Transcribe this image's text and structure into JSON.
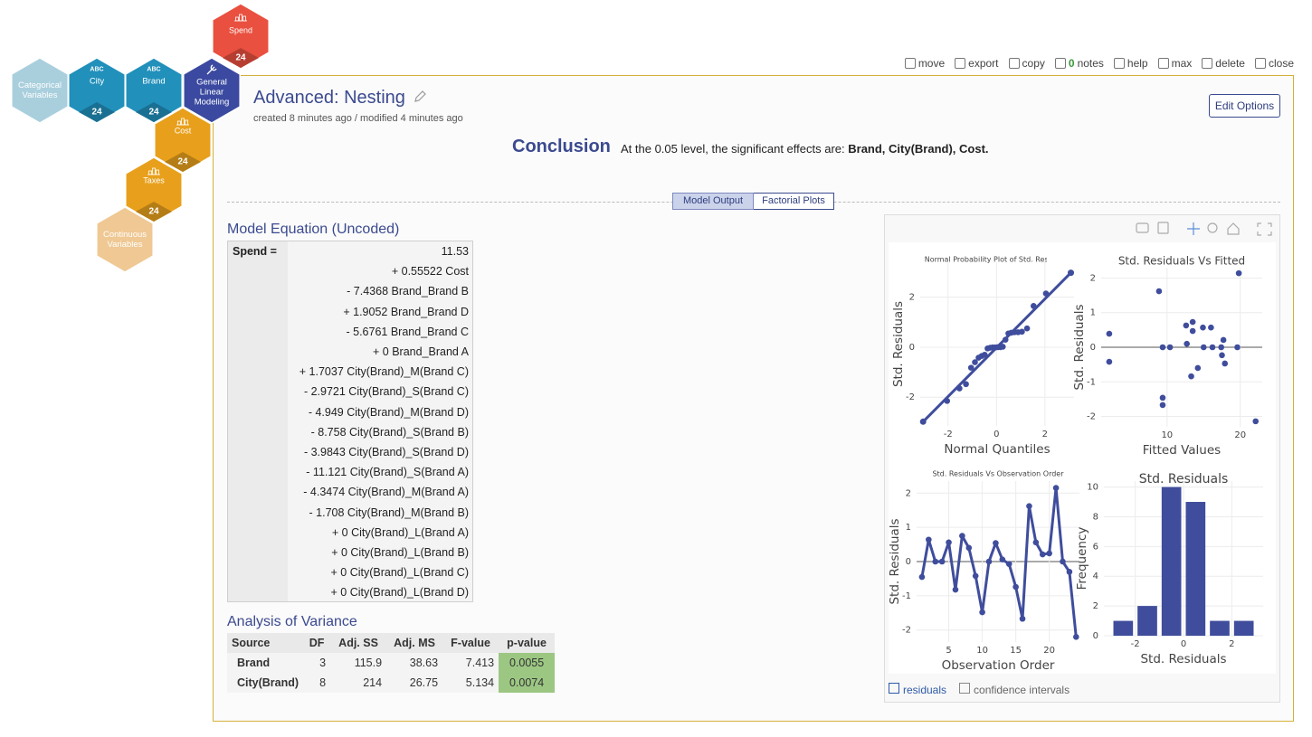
{
  "nodes": [
    {
      "label": "Spend",
      "count": "24",
      "color": "#e9503f"
    },
    {
      "label": "Categorical Variables",
      "color": "#a9cfdd"
    },
    {
      "label": "City",
      "badge": "ABC",
      "count": "24",
      "color": "#2190bb"
    },
    {
      "label": "Brand",
      "badge": "ABC",
      "count": "24",
      "color": "#2190bb"
    },
    {
      "label": "General Linear Modeling",
      "color": "#3b4aa0"
    },
    {
      "label": "Cost",
      "count": "24",
      "color": "#e8a01c"
    },
    {
      "label": "Taxes",
      "count": "24",
      "color": "#e8a01c"
    },
    {
      "label": "Continuous Variables",
      "color": "#efc893"
    }
  ],
  "toolbar": [
    {
      "label": "move"
    },
    {
      "label": "export"
    },
    {
      "label": "copy"
    },
    {
      "count": "0",
      "label": "notes"
    },
    {
      "label": "help"
    },
    {
      "label": "max"
    },
    {
      "label": "delete"
    },
    {
      "label": "close"
    }
  ],
  "header": {
    "title": "Advanced: Nesting",
    "meta": "created 8 minutes ago / modified 4 minutes ago",
    "button": "Edit Options"
  },
  "conclusion": {
    "heading": "Conclusion",
    "text": "At the 0.05 level, the significant effects are: ",
    "effects": "Brand, City(Brand), Cost."
  },
  "tabs": [
    "Model Output",
    "Factorial Plots"
  ],
  "equation": {
    "title": "Model Equation (Uncoded)",
    "response": "Spend =",
    "terms": [
      "11.53",
      "+ 0.55522 Cost",
      "- 7.4368 Brand_Brand B",
      "+ 1.9052 Brand_Brand D",
      "- 5.6761 Brand_Brand C",
      "+ 0 Brand_Brand A",
      "+ 1.7037 City(Brand)_M(Brand C)",
      "- 2.9721 City(Brand)_S(Brand C)",
      "- 4.949 City(Brand)_M(Brand D)",
      "- 8.758 City(Brand)_S(Brand B)",
      "- 3.9843 City(Brand)_S(Brand D)",
      "- 11.121 City(Brand)_S(Brand A)",
      "- 4.3474 City(Brand)_M(Brand A)",
      "- 1.708 City(Brand)_M(Brand B)",
      "+ 0 City(Brand)_L(Brand A)",
      "+ 0 City(Brand)_L(Brand B)",
      "+ 0 City(Brand)_L(Brand C)",
      "+ 0 City(Brand)_L(Brand D)"
    ]
  },
  "anova": {
    "title": "Analysis of Variance",
    "columns": [
      "Source",
      "DF",
      "Adj. SS",
      "Adj. MS",
      "F-value",
      "p-value"
    ],
    "rows": [
      [
        "Brand",
        "3",
        "115.9",
        "38.63",
        "7.413",
        "0.0055"
      ],
      [
        "City(Brand)",
        "8",
        "214",
        "26.75",
        "5.134",
        "0.0074"
      ]
    ]
  },
  "plots": [
    {
      "type": "scatter",
      "title": "Normal Probability Plot of Std. Residuals",
      "xlabel": "Normal Quantiles",
      "ylabel": "Std. Residuals",
      "xlim": [
        -3.15,
        3.2
      ],
      "ylim": [
        -3.15,
        3.4
      ],
      "xticks": [
        -2,
        0,
        2
      ],
      "yticks": [
        -2,
        0,
        2
      ],
      "grid": true,
      "color": "#3f4d9c",
      "x": [
        -2.04,
        -1.53,
        -1.26,
        -1.05,
        -0.89,
        -0.74,
        -0.61,
        -0.49,
        -0.37,
        -0.26,
        -0.16,
        -0.05,
        0.05,
        0.16,
        0.26,
        0.37,
        0.49,
        0.61,
        0.74,
        0.89,
        1.05,
        1.26,
        1.53,
        2.04
      ],
      "y": [
        -2.15,
        -1.65,
        -1.48,
        -0.82,
        -0.6,
        -0.42,
        -0.35,
        -0.3,
        -0.05,
        -0.02,
        -0.01,
        -0.01,
        0,
        0,
        0.02,
        0.3,
        0.55,
        0.58,
        0.6,
        0.6,
        0.62,
        0.75,
        1.65,
        2.15
      ],
      "fit_line": {
        "x": [
          -3.03,
          3.07
        ],
        "y": [
          -2.98,
          2.98
        ]
      }
    },
    {
      "type": "scatter",
      "title": "Std. Residuals Vs Fitted",
      "xlabel": "Fitted Values",
      "ylabel": "Std. Residuals",
      "xlim": [
        1,
        23
      ],
      "ylim": [
        -2.3,
        2.3
      ],
      "xticks": [
        10,
        20
      ],
      "yticks": [
        -2,
        -1,
        0,
        1,
        2
      ],
      "grid": true,
      "zeroline": true,
      "color": "#3f4d9c",
      "x": [
        2.1,
        2.1,
        8.9,
        9.4,
        9.4,
        9.4,
        10.4,
        12.6,
        13.5,
        13.5,
        12.7,
        13.3,
        14.2,
        15,
        14.9,
        16,
        16.2,
        17.4,
        17.7,
        17.5,
        17.9,
        19.6,
        19.8,
        22.1
      ],
      "y": [
        0.39,
        -0.42,
        1.62,
        -1.46,
        -1.67,
        0,
        0,
        0.63,
        0.73,
        0.47,
        0.1,
        -0.84,
        -0.6,
        0,
        0.57,
        0.57,
        0,
        0,
        0.21,
        -0.23,
        -0.47,
        0,
        2.14,
        -2.14
      ]
    },
    {
      "type": "line",
      "title": "Std. Residuals Vs Observation Order",
      "xlabel": "Observation Order",
      "ylabel": "Std. Residuals",
      "xlim": [
        0.2,
        24.5
      ],
      "ylim": [
        -2.35,
        2.35
      ],
      "xticks": [
        5,
        10,
        15,
        20
      ],
      "yticks": [
        -2,
        -1,
        0,
        1,
        2
      ],
      "grid": true,
      "zeroline": true,
      "color": "#3f4d9c",
      "x": [
        1,
        2,
        3,
        4,
        5,
        6,
        7,
        8,
        9,
        10,
        11,
        12,
        13,
        14,
        15,
        16,
        17,
        18,
        19,
        20,
        21,
        22,
        23,
        24
      ],
      "y": [
        -0.45,
        0.64,
        0,
        0,
        0.56,
        -0.82,
        0.75,
        0.4,
        -0.42,
        -1.48,
        0,
        0.54,
        0.06,
        -0.07,
        -0.74,
        -1.67,
        1.62,
        0.56,
        0.21,
        0.24,
        2.15,
        0,
        -0.3,
        -2.2
      ]
    },
    {
      "type": "histogram",
      "title": "Std. Residuals",
      "xlabel": "Std. Residuals",
      "ylabel": "Frequency",
      "xlim": [
        -3.3,
        3.3
      ],
      "ylim": [
        0,
        10.4
      ],
      "xticks": [
        -2,
        0,
        2
      ],
      "yticks": [
        0,
        2,
        4,
        6,
        8,
        10
      ],
      "grid": true,
      "color": "#3f4d9c",
      "bins": [
        -3,
        -2,
        -1,
        0,
        1,
        2,
        3
      ],
      "counts": [
        1,
        2,
        10,
        9,
        1,
        1
      ]
    }
  ],
  "plot_links": [
    "residuals",
    "confidence intervals"
  ]
}
